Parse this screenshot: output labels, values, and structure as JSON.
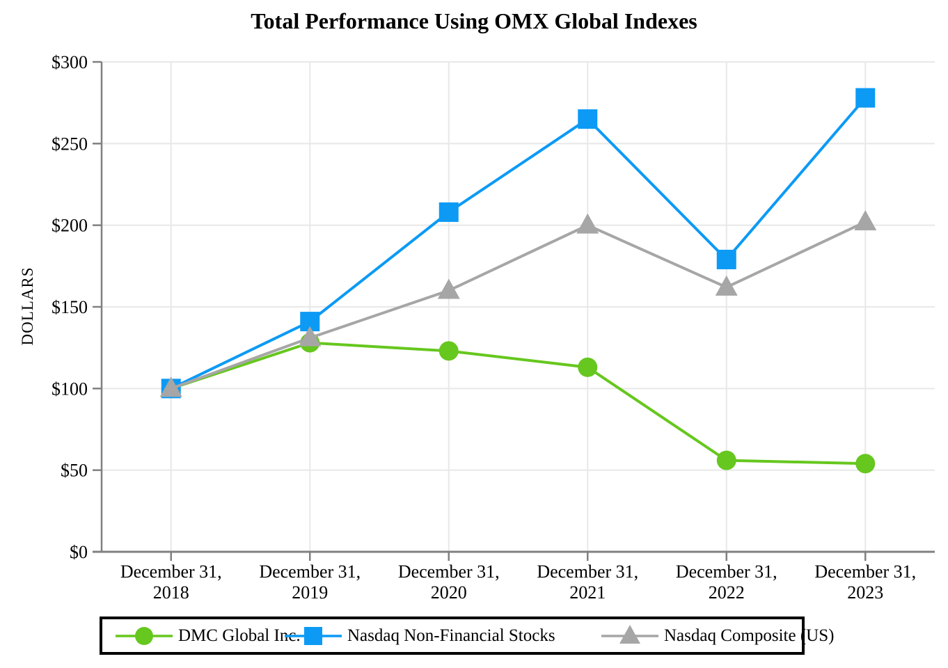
{
  "title": "Total Performance Using OMX Global Indexes",
  "chart_data": {
    "type": "line",
    "title": "Total Performance Using OMX Global Indexes",
    "xlabel": "",
    "ylabel": "DOLLARS",
    "categories": [
      "December 31, 2018",
      "December 31, 2019",
      "December 31, 2020",
      "December 31, 2021",
      "December 31, 2022",
      "December 31, 2023"
    ],
    "series": [
      {
        "name": "DMC Global Inc.",
        "marker": "circle",
        "color": "#66C71E",
        "values": [
          100,
          128,
          123,
          113,
          56,
          54
        ]
      },
      {
        "name": "Nasdaq Non-Financial Stocks",
        "marker": "square",
        "color": "#0C9AF5",
        "values": [
          100,
          141,
          208,
          265,
          179,
          278
        ]
      },
      {
        "name": "Nasdaq Composite (US)",
        "marker": "triangle",
        "color": "#A6A6A6",
        "values": [
          100,
          131,
          160,
          200,
          162,
          202
        ]
      }
    ],
    "ylim": [
      0,
      300
    ],
    "y_tick_step": 50,
    "y_tick_labels": [
      "$0",
      "$50",
      "$100",
      "$150",
      "$200",
      "$250",
      "$300"
    ],
    "grid": true,
    "grid_color": "#E8E8E8",
    "axis_color": "#808080",
    "background_color": "#FFFFFF",
    "legend_position": "bottom",
    "legend_border_color": "#000000"
  }
}
